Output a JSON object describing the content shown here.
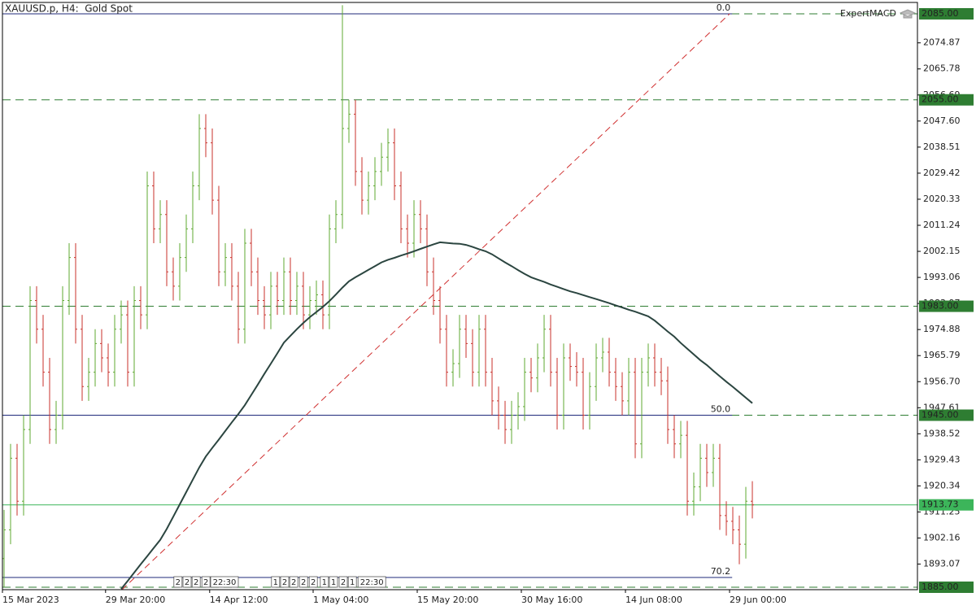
{
  "chart_data": {
    "type": "ohlc",
    "title": "XAUUSD.p, H4:  Gold Spot",
    "indicator_label": "ExpertMACD",
    "up_color": "#5fa832",
    "down_color": "#c8312b",
    "xlim": [
      -0.25,
      140.375
    ],
    "xticks": [
      {
        "value": -0.25,
        "label": "15 Mar 2023"
      },
      {
        "value": 15.6,
        "label": "29 Mar 20:00"
      },
      {
        "value": 31.6,
        "label": "14 Apr 12:00"
      },
      {
        "value": 47.5,
        "label": "1 May 04:00"
      },
      {
        "value": 63.5,
        "label": "15 May 20:00"
      },
      {
        "value": 79.5,
        "label": "30 May 16:00"
      },
      {
        "value": 95.5,
        "label": "14 Jun 08:00"
      },
      {
        "value": 111.5,
        "label": "29 Jun 00:00"
      }
    ],
    "ylim": [
      1884.15,
      2088.97
    ],
    "yticks": [
      2074.87,
      2065.78,
      2056.69,
      {
        "value": 2047.6,
        "label": "2047.60"
      },
      2038.51,
      2029.42,
      2020.33,
      2011.24,
      2002.15,
      1993.06,
      1983.97,
      1974.88,
      1965.79,
      {
        "value": 1956.7,
        "label": "1956.70"
      },
      1947.61,
      1938.52,
      1929.43,
      1920.34,
      1911.25,
      1902.16,
      1893.07
    ],
    "open": [
      1895,
      1905,
      1930,
      1915,
      1940,
      1985,
      1975,
      1960,
      1940,
      1945,
      1985,
      2000,
      1975,
      1955,
      1960,
      1970,
      1965,
      1960,
      1975,
      1980,
      1960,
      1985,
      1980,
      2025,
      2010,
      2015,
      1995,
      1990,
      2000,
      2010,
      2025,
      2045,
      2040,
      2020,
      1995,
      2000,
      1990,
      1975,
      2005,
      1995,
      1985,
      1980,
      1990,
      1985,
      1995,
      1985,
      1990,
      1980,
      1985,
      1987,
      1980,
      2010,
      2015,
      2045,
      2050,
      2030,
      2020,
      2025,
      2030,
      2035,
      2040,
      2025,
      2010,
      2005,
      2015,
      2010,
      1995,
      1985,
      1975,
      1960,
      1963,
      1975,
      1970,
      1960,
      1975,
      1960,
      1950,
      1945,
      1940,
      1945,
      1948,
      1960,
      1958,
      1965,
      1975,
      1960,
      1945,
      1965,
      1962,
      1960,
      1945,
      1955,
      1965,
      1967,
      1960,
      1955,
      1950,
      1960,
      1935,
      1960,
      1965,
      1960,
      1957,
      1940,
      1935,
      1938,
      1915,
      1920,
      1930,
      1925,
      1930,
      1910,
      1908,
      1905,
      1900,
      1915
    ],
    "high": [
      1912,
      1935,
      1935,
      1945,
      1990,
      1990,
      1980,
      1965,
      1950,
      1990,
      2005,
      2005,
      1980,
      1965,
      1975,
      1975,
      1970,
      1980,
      1985,
      1985,
      1990,
      1990,
      2030,
      2030,
      2020,
      2020,
      2000,
      2005,
      2015,
      2030,
      2050,
      2050,
      2045,
      2025,
      2005,
      2005,
      1995,
      2010,
      2010,
      2000,
      1990,
      1995,
      1995,
      2000,
      2000,
      1995,
      1995,
      1990,
      1992,
      1992,
      2015,
      2020,
      2088,
      2055,
      2055,
      2035,
      2030,
      2035,
      2040,
      2045,
      2045,
      2030,
      2015,
      2020,
      2020,
      2015,
      2000,
      1990,
      1980,
      1968,
      1980,
      1980,
      1975,
      1980,
      1980,
      1965,
      1955,
      1950,
      1950,
      1953,
      1965,
      1965,
      1970,
      1980,
      1980,
      1965,
      1970,
      1970,
      1967,
      1965,
      1960,
      1970,
      1972,
      1972,
      1965,
      1960,
      1965,
      1965,
      1965,
      1970,
      1970,
      1965,
      1962,
      1945,
      1943,
      1943,
      1925,
      1935,
      1935,
      1935,
      1935,
      1915,
      1913,
      1910,
      1920,
      1922
    ],
    "low": [
      1885,
      1900,
      1910,
      1910,
      1935,
      1970,
      1955,
      1935,
      1935,
      1940,
      1980,
      1970,
      1950,
      1950,
      1955,
      1960,
      1955,
      1955,
      1970,
      1955,
      1955,
      1975,
      1975,
      2005,
      2005,
      1990,
      1985,
      1985,
      1995,
      2005,
      2020,
      2035,
      2015,
      1990,
      1990,
      1985,
      1970,
      1970,
      1990,
      1980,
      1975,
      1975,
      1980,
      1980,
      1980,
      1980,
      1975,
      1975,
      1980,
      1975,
      1975,
      2005,
      2010,
      2040,
      2025,
      2015,
      2015,
      2020,
      2025,
      2030,
      2020,
      2005,
      2000,
      2000,
      2005,
      1990,
      1980,
      1970,
      1955,
      1955,
      1958,
      1965,
      1955,
      1955,
      1955,
      1945,
      1940,
      1935,
      1935,
      1940,
      1943,
      1953,
      1953,
      1960,
      1955,
      1940,
      1940,
      1957,
      1955,
      1940,
      1940,
      1950,
      1960,
      1955,
      1950,
      1945,
      1945,
      1930,
      1930,
      1955,
      1955,
      1952,
      1935,
      1930,
      1930,
      1910,
      1910,
      1915,
      1920,
      1920,
      1905,
      1903,
      1900,
      1893,
      1895,
      1909
    ],
    "close": [
      1905,
      1930,
      1915,
      1940,
      1985,
      1975,
      1960,
      1940,
      1945,
      1985,
      2000,
      1975,
      1955,
      1960,
      1970,
      1965,
      1960,
      1975,
      1980,
      1960,
      1985,
      1980,
      2025,
      2010,
      2015,
      1995,
      1990,
      2000,
      2010,
      2025,
      2045,
      2040,
      2020,
      1995,
      2000,
      1990,
      1975,
      2005,
      1995,
      1985,
      1980,
      1990,
      1985,
      1995,
      1985,
      1990,
      1980,
      1985,
      1987,
      1980,
      2010,
      2015,
      2045,
      2050,
      2030,
      2020,
      2025,
      2030,
      2035,
      2040,
      2025,
      2010,
      2005,
      2015,
      2010,
      1995,
      1985,
      1975,
      1960,
      1963,
      1975,
      1970,
      1960,
      1975,
      1960,
      1950,
      1945,
      1940,
      1945,
      1948,
      1960,
      1958,
      1965,
      1975,
      1960,
      1945,
      1965,
      1962,
      1960,
      1945,
      1955,
      1965,
      1967,
      1960,
      1955,
      1950,
      1960,
      1935,
      1960,
      1965,
      1960,
      1957,
      1940,
      1935,
      1938,
      1915,
      1920,
      1930,
      1925,
      1930,
      1910,
      1908,
      1905,
      1900,
      1915,
      1913.73
    ],
    "ma": {
      "color": "#2b4540",
      "values": [
        null,
        null,
        null,
        null,
        null,
        null,
        null,
        null,
        null,
        null,
        null,
        null,
        null,
        null,
        null,
        null,
        null,
        null,
        1884.4,
        1887.2,
        1890.1,
        1893.0,
        1895.8,
        1898.7,
        1901.5,
        1905.3,
        1909.6,
        1913.9,
        1918.2,
        1922.5,
        1926.8,
        1930.6,
        1933.6,
        1936.5,
        1939.5,
        1942.5,
        1945.4,
        1948.5,
        1952.1,
        1955.7,
        1959.4,
        1963.0,
        1966.6,
        1970.3,
        1972.7,
        1975.0,
        1977.2,
        1979.2,
        1981.0,
        1982.8,
        1984.8,
        1987.1,
        1989.5,
        1991.7,
        1993.1,
        1994.4,
        1995.7,
        1997.0,
        1998.3,
        1999.2,
        1999.9,
        2000.7,
        2001.4,
        2002.2,
        2003.0,
        2003.8,
        2004.6,
        2005.3,
        2005.1,
        2004.9,
        2004.8,
        2004.4,
        2003.7,
        2002.9,
        2002.2,
        2001.1,
        1999.7,
        1998.3,
        1997.0,
        1995.6,
        1994.3,
        1993.1,
        1992.3,
        1991.5,
        1990.6,
        1989.8,
        1989.0,
        1988.2,
        1987.6,
        1986.9,
        1986.2,
        1985.5,
        1984.8,
        1984.1,
        1983.3,
        1982.6,
        1981.8,
        1981.1,
        1980.3,
        1979.5,
        1978.0,
        1976.1,
        1974.2,
        1972.4,
        1970.2,
        1968.2,
        1966.2,
        1964.2,
        1962.5,
        1960.5,
        1958.6,
        1956.7,
        1954.9,
        1953.0,
        1951.1,
        1949.2
      ]
    },
    "levels": [
      {
        "value": 2085,
        "label": "2085.00",
        "color": "#2e7d32",
        "style": "dashed"
      },
      {
        "value": 2055,
        "label": "2055.00",
        "color": "#2e7d32",
        "style": "dashed"
      },
      {
        "value": 1983,
        "label": "1983.00",
        "color": "#2e7d32",
        "style": "dashed"
      },
      {
        "value": 1945,
        "label": "1945.00",
        "color": "#2e7d32",
        "style": "dashed"
      },
      {
        "value": 1885,
        "label": "1885.00",
        "color": "#2e7d32",
        "style": "dashed"
      },
      {
        "value": 1913.73,
        "label": "1913.73",
        "color": "#3cb55a",
        "style": "solid"
      }
    ],
    "fibonacci": {
      "color": "#1f2a7a",
      "x": [
        -0.25,
        111.9
      ],
      "levels": [
        {
          "value": 2085,
          "label": "0.0"
        },
        {
          "value": 1945,
          "label": "50.0"
        },
        {
          "value": 1888.4,
          "label": "70.2"
        }
      ]
    },
    "trend_line": {
      "color": "#d03030",
      "x": [
        18.1,
        111.5
      ],
      "y": [
        1884.1,
        2085
      ]
    },
    "events": [
      {
        "x": 26.6,
        "label": "2"
      },
      {
        "x": 28,
        "label": "2"
      },
      {
        "x": 29.4,
        "label": "2"
      },
      {
        "x": 30.9,
        "label": "2"
      },
      {
        "x": 32.25,
        "label": "22:30"
      },
      {
        "x": 41.6,
        "label": "1"
      },
      {
        "x": 43,
        "label": "2"
      },
      {
        "x": 44.4,
        "label": "2"
      },
      {
        "x": 45.9,
        "label": "2"
      },
      {
        "x": 47.4,
        "label": "2"
      },
      {
        "x": 49.1,
        "label": "1"
      },
      {
        "x": 50.5,
        "label": "1"
      },
      {
        "x": 52,
        "label": "2"
      },
      {
        "x": 53.4,
        "label": "1"
      },
      {
        "x": 54.9,
        "label": "22:30"
      }
    ]
  }
}
